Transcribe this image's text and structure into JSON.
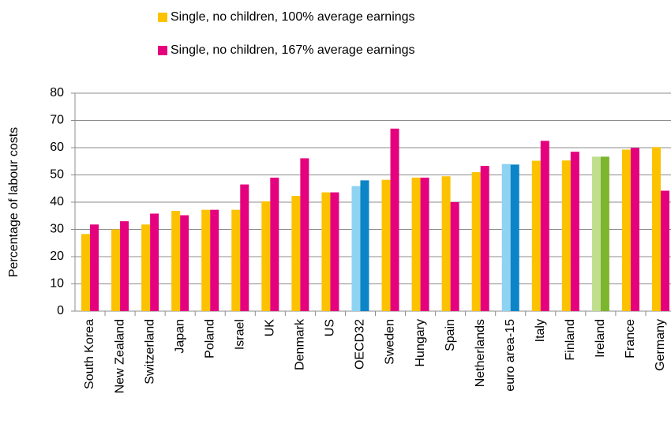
{
  "chart_data": {
    "type": "bar",
    "y_label": "Percentage of labour costs",
    "categories": [
      "South Korea",
      "New Zealand",
      "Switzerland",
      "Japan",
      "Poland",
      "Israel",
      "UK",
      "Denmark",
      "US",
      "OECD32",
      "Sweden",
      "Hungary",
      "Spain",
      "Netherlands",
      "euro area-15",
      "Italy",
      "Finland",
      "Ireland",
      "France",
      "Germany"
    ],
    "series": [
      {
        "name": "Single, no children, 100% average earnings",
        "color": "#fcc200",
        "colors": [
          "#fcc200",
          "#fcc200",
          "#fcc200",
          "#fcc200",
          "#fcc200",
          "#fcc200",
          "#fcc200",
          "#fcc200",
          "#fcc200",
          "#8fd3f2",
          "#fcc200",
          "#fcc200",
          "#fcc200",
          "#fcc200",
          "#8fd3f2",
          "#fcc200",
          "#fcc200",
          "#bfdf8f",
          "#fcc200",
          "#fcc200"
        ],
        "values": [
          28.3,
          30,
          31.8,
          36.8,
          37.2,
          37.2,
          40.3,
          42.3,
          43.6,
          45.9,
          48.2,
          49,
          49.5,
          51,
          54,
          55.2,
          55.3,
          56.7,
          59.3,
          60.2
        ]
      },
      {
        "name": "Single, no children, 167% average earnings",
        "color": "#e5007d",
        "colors": [
          "#e5007d",
          "#e5007d",
          "#e5007d",
          "#e5007d",
          "#e5007d",
          "#e5007d",
          "#e5007d",
          "#e5007d",
          "#e5007d",
          "#0b84c8",
          "#e5007d",
          "#e5007d",
          "#e5007d",
          "#e5007d",
          "#0b84c8",
          "#e5007d",
          "#e5007d",
          "#7cb52e",
          "#e5007d",
          "#e5007d"
        ],
        "values": [
          31.8,
          33,
          35.8,
          35.2,
          37.2,
          46.5,
          49,
          56.1,
          43.6,
          48,
          67,
          49,
          40,
          53.3,
          53.8,
          62.5,
          58.5,
          56.7,
          59.9,
          44.2
        ]
      }
    ],
    "ylim": [
      0,
      80
    ],
    "yticks": [
      0,
      10,
      20,
      30,
      40,
      50,
      60,
      70,
      80
    ],
    "grid": true,
    "legend": "top"
  }
}
